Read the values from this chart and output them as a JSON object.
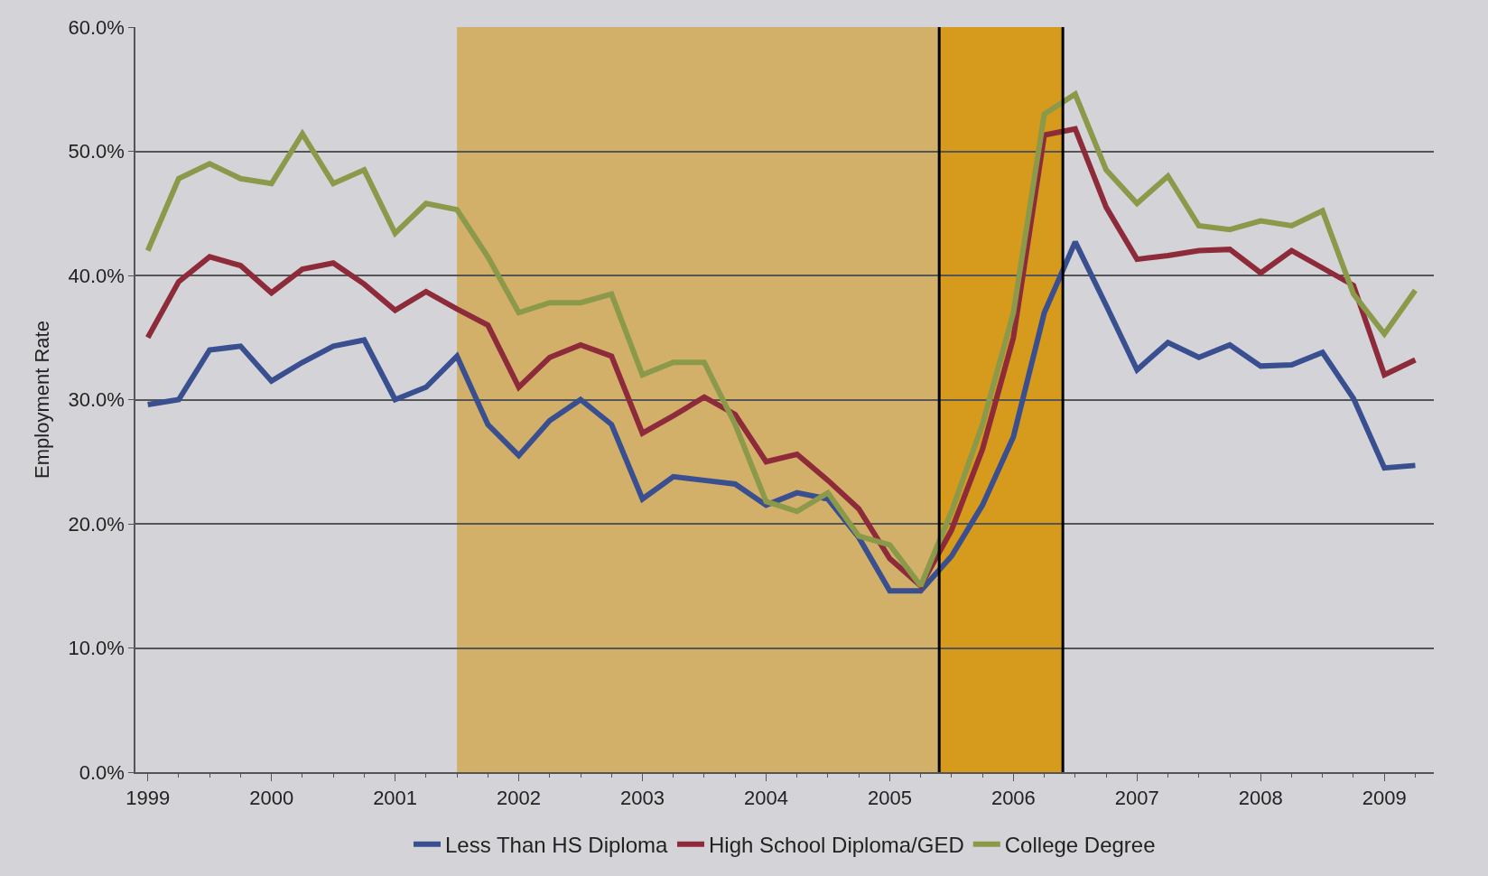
{
  "chart_data": {
    "type": "line",
    "ylabel": "Employment Rate",
    "x": [
      1999,
      1999.25,
      1999.5,
      1999.75,
      2000,
      2000.25,
      2000.5,
      2000.75,
      2001,
      2001.25,
      2001.5,
      2001.75,
      2002,
      2002.25,
      2002.5,
      2002.75,
      2003,
      2003.25,
      2003.5,
      2003.75,
      2004,
      2004.25,
      2004.5,
      2004.75,
      2005,
      2005.25,
      2005.5,
      2005.75,
      2006,
      2006.25,
      2006.5,
      2006.75,
      2007,
      2007.25,
      2007.5,
      2007.75,
      2008,
      2008.25,
      2008.5,
      2008.75,
      2009,
      2009.25
    ],
    "series": [
      {
        "name": "Less Than HS Diploma",
        "color": "#3a4f8f",
        "values": [
          29.6,
          30,
          34,
          34.3,
          31.5,
          33,
          34.3,
          34.8,
          30,
          31,
          33.5,
          28,
          25.5,
          28.3,
          30,
          28,
          22,
          23.8,
          23.5,
          23.2,
          21.5,
          22.5,
          22,
          18.9,
          14.6,
          14.6,
          17.4,
          21.5,
          27,
          37,
          42.7,
          37.6,
          32.4,
          34.6,
          33.4,
          34.4,
          32.7,
          32.8,
          33.8,
          30.1,
          24.5,
          24.7
        ]
      },
      {
        "name": "High School Diploma/GED",
        "color": "#8e2b3a",
        "values": [
          35,
          39.5,
          41.5,
          40.8,
          38.6,
          40.5,
          41,
          39.3,
          37.2,
          38.7,
          37.3,
          36,
          31,
          33.4,
          34.4,
          33.5,
          27.3,
          28.7,
          30.2,
          28.8,
          25,
          25.6,
          23.5,
          21.2,
          17.2,
          15,
          19.5,
          26,
          35,
          51.3,
          51.8,
          45.5,
          41.3,
          41.6,
          42,
          42.1,
          40.2,
          42,
          40.6,
          39.2,
          32,
          33.2
        ]
      },
      {
        "name": "College Degree",
        "color": "#8a9a4a",
        "values": [
          42,
          47.8,
          49,
          47.8,
          47.4,
          51.4,
          47.4,
          48.5,
          43.4,
          45.8,
          45.3,
          41.5,
          37,
          37.8,
          37.8,
          38.5,
          32,
          33,
          33,
          28,
          21.8,
          21,
          22.5,
          19,
          18.3,
          15,
          21,
          28,
          37,
          53,
          54.6,
          48.5,
          45.8,
          48,
          44,
          43.7,
          44.4,
          44,
          45.2,
          38.5,
          35.3,
          38.8
        ]
      }
    ],
    "xlim": [
      1998.9,
      2009.4
    ],
    "xticks": [
      1999,
      2000,
      2001,
      2002,
      2003,
      2004,
      2005,
      2006,
      2007,
      2008,
      2009
    ],
    "ylim": [
      0,
      60
    ],
    "yticks": [
      {
        "value": 0,
        "label": "0.0%"
      },
      {
        "value": 10,
        "label": "10.0%"
      },
      {
        "value": 20,
        "label": "20.0%"
      },
      {
        "value": 30,
        "label": "30.0%"
      },
      {
        "value": 40,
        "label": "40.0%"
      },
      {
        "value": 50,
        "label": "50.0%"
      },
      {
        "value": 60,
        "label": "60.0%"
      }
    ],
    "bands": [
      {
        "axis": "x",
        "from": 2001.5,
        "to": 2005.4,
        "color": "#d2b06a"
      },
      {
        "axis": "x",
        "from": 2005.4,
        "to": 2006.4,
        "color": "#d69a1c"
      }
    ],
    "ref_lines": [
      {
        "axis": "x",
        "value": 2005.4,
        "color": "#000000"
      },
      {
        "axis": "x",
        "value": 2006.4,
        "color": "#000000"
      }
    ],
    "grid": "y",
    "legend": "bottom",
    "marker": "none",
    "line_style": "solid"
  }
}
